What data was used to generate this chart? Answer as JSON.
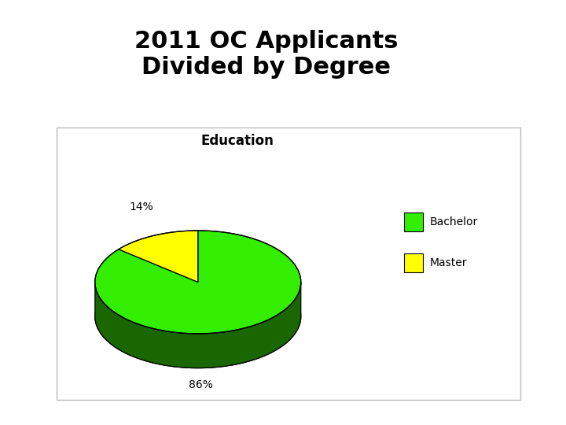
{
  "title": "2011 OC Applicants\nDivided by Degree",
  "chart_title": "Education",
  "values": [
    86,
    14
  ],
  "labels": [
    "86%",
    "14%"
  ],
  "legend_labels": [
    "Bachelor",
    "Master"
  ],
  "colors": [
    "#33ee00",
    "#ffff00"
  ],
  "shadow_color": "#1a6600",
  "edge_color": "#000000",
  "title_fontsize": 22,
  "chart_title_fontsize": 12,
  "label_fontsize": 10,
  "legend_fontsize": 10,
  "background_color": "#ffffff",
  "panel_facecolor": "#ffffff",
  "panel_edgecolor": "#bbbbbb"
}
